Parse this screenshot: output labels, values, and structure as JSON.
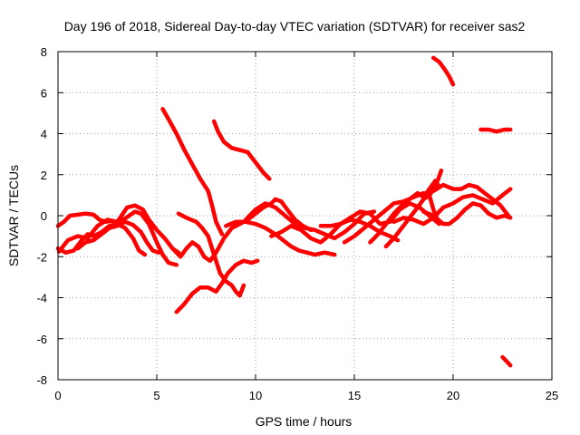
{
  "chart_data": {
    "type": "scatter",
    "title": "Day 196 of 2018, Sidereal Day-to-day VTEC variation (SDTVAR) for receiver sas2",
    "xlabel": "GPS time / hours",
    "ylabel": "SDTVAR / TECUs",
    "xlim": [
      0,
      25
    ],
    "ylim": [
      -8,
      8
    ],
    "xticks": [
      "0",
      "5",
      "10",
      "15",
      "20",
      "25"
    ],
    "yticks": [
      "-8",
      "-6",
      "-4",
      "-2",
      "0",
      "2",
      "4",
      "6",
      "8"
    ],
    "grid": true,
    "legend": "none",
    "color": "#ff0000",
    "series": [
      {
        "points": [
          [
            0,
            -0.5
          ],
          [
            0.3,
            -0.3
          ],
          [
            0.6,
            0.0
          ],
          [
            1.0,
            0.05
          ],
          [
            1.4,
            0.1
          ],
          [
            1.8,
            0.05
          ],
          [
            2.1,
            -0.2
          ],
          [
            2.4,
            -0.3
          ],
          [
            2.7,
            -0.25
          ],
          [
            3.0,
            -0.35
          ],
          [
            3.3,
            -0.2
          ],
          [
            3.6,
            0.0
          ],
          [
            3.9,
            0.2
          ],
          [
            4.2,
            0.1
          ],
          [
            4.6,
            -0.4
          ],
          [
            5.0,
            -1.3
          ],
          [
            5.3,
            -1.9
          ],
          [
            5.6,
            -2.3
          ],
          [
            6.0,
            -2.4
          ]
        ]
      },
      {
        "points": [
          [
            0,
            -1.6
          ],
          [
            0.4,
            -1.8
          ],
          [
            0.8,
            -1.7
          ],
          [
            1.2,
            -1.2
          ],
          [
            1.5,
            -0.9
          ],
          [
            1.8,
            -1.0
          ],
          [
            2.2,
            -0.8
          ],
          [
            2.6,
            -0.5
          ],
          [
            3.0,
            -0.4
          ],
          [
            3.4,
            -0.6
          ],
          [
            3.8,
            -1.1
          ],
          [
            4.1,
            -1.7
          ],
          [
            4.4,
            -1.9
          ]
        ]
      },
      {
        "points": [
          [
            0.05,
            -1.75
          ],
          [
            0.5,
            -1.2
          ],
          [
            1.0,
            -1.0
          ],
          [
            1.5,
            -1.1
          ],
          [
            2.0,
            -0.5
          ],
          [
            2.5,
            -0.2
          ],
          [
            3.0,
            -0.3
          ],
          [
            3.5,
            0.4
          ],
          [
            3.9,
            0.5
          ],
          [
            4.3,
            0.3
          ],
          [
            4.6,
            -0.2
          ],
          [
            5.0,
            -0.7
          ],
          [
            5.4,
            -1.1
          ],
          [
            5.8,
            -1.6
          ],
          [
            6.1,
            -1.8
          ]
        ]
      },
      {
        "points": [
          [
            1.0,
            -1.6
          ],
          [
            1.4,
            -1.3
          ],
          [
            1.8,
            -1.2
          ],
          [
            2.2,
            -0.9
          ],
          [
            2.6,
            -0.6
          ],
          [
            3.0,
            -0.5
          ],
          [
            3.4,
            -0.3
          ],
          [
            3.8,
            -0.45
          ],
          [
            4.2,
            -0.8
          ],
          [
            4.5,
            -1.3
          ],
          [
            4.8,
            -1.7
          ],
          [
            5.1,
            -1.8
          ]
        ]
      },
      {
        "points": [
          [
            5.3,
            5.2
          ],
          [
            5.6,
            4.7
          ],
          [
            6.0,
            4.0
          ],
          [
            6.4,
            3.2
          ],
          [
            6.8,
            2.5
          ],
          [
            7.2,
            1.8
          ],
          [
            7.6,
            1.2
          ],
          [
            7.8,
            0.5
          ],
          [
            8.0,
            -0.3
          ],
          [
            8.3,
            -0.9
          ]
        ]
      },
      {
        "points": [
          [
            7.9,
            4.6
          ],
          [
            8.1,
            4.1
          ],
          [
            8.4,
            3.6
          ],
          [
            8.8,
            3.3
          ],
          [
            9.2,
            3.2
          ],
          [
            9.6,
            3.1
          ],
          [
            10.0,
            2.6
          ],
          [
            10.4,
            2.1
          ],
          [
            10.7,
            1.8
          ]
        ]
      },
      {
        "points": [
          [
            6.1,
            0.1
          ],
          [
            6.5,
            -0.1
          ],
          [
            7.0,
            -0.3
          ],
          [
            7.3,
            -0.6
          ],
          [
            7.6,
            -1.0
          ],
          [
            7.8,
            -1.6
          ],
          [
            8.0,
            -2.2
          ],
          [
            8.2,
            -2.8
          ],
          [
            8.5,
            -3.2
          ],
          [
            8.8,
            -3.4
          ],
          [
            9.0,
            -3.7
          ],
          [
            9.2,
            -3.9
          ],
          [
            9.4,
            -3.4
          ]
        ]
      },
      {
        "points": [
          [
            5.8,
            -1.6
          ],
          [
            6.2,
            -2.0
          ],
          [
            6.5,
            -1.6
          ],
          [
            6.8,
            -1.3
          ],
          [
            7.1,
            -1.5
          ],
          [
            7.4,
            -2.0
          ],
          [
            7.7,
            -2.2
          ],
          [
            8.0,
            -1.8
          ],
          [
            8.4,
            -1.1
          ],
          [
            8.8,
            -0.6
          ],
          [
            9.2,
            -0.4
          ],
          [
            9.6,
            -0.2
          ],
          [
            10.0,
            0.1
          ],
          [
            10.4,
            0.4
          ],
          [
            10.8,
            0.6
          ],
          [
            11.0,
            0.8
          ],
          [
            11.3,
            0.7
          ],
          [
            11.6,
            0.3
          ],
          [
            12.0,
            -0.2
          ],
          [
            12.4,
            -0.5
          ],
          [
            12.8,
            -0.7
          ]
        ]
      },
      {
        "points": [
          [
            6.0,
            -4.7
          ],
          [
            6.4,
            -4.3
          ],
          [
            6.8,
            -3.8
          ],
          [
            7.2,
            -3.5
          ],
          [
            7.6,
            -3.5
          ],
          [
            8.0,
            -3.7
          ],
          [
            8.3,
            -3.3
          ],
          [
            8.6,
            -2.8
          ],
          [
            9.0,
            -2.4
          ],
          [
            9.4,
            -2.2
          ],
          [
            9.8,
            -2.3
          ],
          [
            10.1,
            -2.2
          ]
        ]
      },
      {
        "points": [
          [
            8.5,
            -0.5
          ],
          [
            9.0,
            -0.3
          ],
          [
            9.5,
            -0.3
          ],
          [
            10.0,
            -0.4
          ],
          [
            10.5,
            -0.6
          ],
          [
            11.0,
            -0.9
          ],
          [
            11.4,
            -1.2
          ],
          [
            11.8,
            -1.5
          ],
          [
            12.2,
            -1.7
          ],
          [
            12.6,
            -1.8
          ],
          [
            13.0,
            -1.9
          ],
          [
            13.5,
            -1.8
          ],
          [
            14.0,
            -1.9
          ]
        ]
      },
      {
        "points": [
          [
            9.5,
            -0.2
          ],
          [
            10.0,
            0.3
          ],
          [
            10.5,
            0.6
          ],
          [
            11.0,
            0.4
          ],
          [
            11.5,
            0.0
          ],
          [
            12.0,
            -0.4
          ],
          [
            12.5,
            -0.6
          ],
          [
            13.0,
            -0.7
          ],
          [
            13.5,
            -0.9
          ],
          [
            14.0,
            -1.1
          ],
          [
            14.5,
            -0.8
          ],
          [
            15.0,
            -0.4
          ],
          [
            15.5,
            0.1
          ],
          [
            16.0,
            0.2
          ]
        ]
      },
      {
        "points": [
          [
            10.8,
            -1.0
          ],
          [
            11.3,
            -0.8
          ],
          [
            11.8,
            -0.5
          ],
          [
            12.3,
            -0.7
          ],
          [
            12.8,
            -1.1
          ],
          [
            13.3,
            -1.3
          ],
          [
            13.8,
            -0.9
          ],
          [
            14.3,
            -0.4
          ],
          [
            14.8,
            -0.2
          ],
          [
            15.3,
            -0.3
          ],
          [
            15.8,
            -0.5
          ],
          [
            16.3,
            -0.8
          ],
          [
            16.8,
            -1.0
          ],
          [
            17.2,
            -1.2
          ]
        ]
      },
      {
        "points": [
          [
            13.3,
            -0.5
          ],
          [
            13.8,
            -0.5
          ],
          [
            14.3,
            -0.4
          ],
          [
            14.8,
            -0.1
          ],
          [
            15.3,
            0.2
          ],
          [
            15.8,
            0.1
          ],
          [
            16.3,
            -0.4
          ],
          [
            16.8,
            -0.3
          ],
          [
            17.3,
            0.3
          ],
          [
            17.8,
            0.6
          ],
          [
            18.3,
            0.4
          ],
          [
            18.8,
            0.0
          ],
          [
            19.3,
            -0.4
          ]
        ]
      },
      {
        "points": [
          [
            14.5,
            -1.3
          ],
          [
            15.0,
            -1.0
          ],
          [
            15.5,
            -0.6
          ],
          [
            16.0,
            -0.2
          ],
          [
            16.5,
            0.2
          ],
          [
            17.0,
            0.6
          ],
          [
            17.5,
            0.7
          ],
          [
            18.0,
            0.9
          ],
          [
            18.5,
            1.1
          ],
          [
            18.8,
            1.0
          ],
          [
            19.0,
            0.3
          ],
          [
            19.2,
            -0.2
          ]
        ]
      },
      {
        "points": [
          [
            15.8,
            -1.3
          ],
          [
            16.2,
            -0.9
          ],
          [
            16.6,
            -0.4
          ],
          [
            17.0,
            0.1
          ],
          [
            17.4,
            0.5
          ],
          [
            17.8,
            0.8
          ],
          [
            18.2,
            1.1
          ],
          [
            18.5,
            0.9
          ],
          [
            18.8,
            1.3
          ],
          [
            19.1,
            1.7
          ],
          [
            19.3,
            1.4
          ]
        ]
      },
      {
        "points": [
          [
            16.6,
            -1.5
          ],
          [
            17.0,
            -1.1
          ],
          [
            17.4,
            -0.6
          ],
          [
            17.8,
            -0.1
          ],
          [
            18.2,
            0.4
          ],
          [
            18.5,
            0.8
          ],
          [
            18.8,
            1.0
          ],
          [
            19.1,
            1.4
          ],
          [
            19.4,
            2.2
          ]
        ]
      },
      {
        "points": [
          [
            17.0,
            -0.3
          ],
          [
            17.5,
            -0.1
          ],
          [
            18.0,
            -0.2
          ],
          [
            18.5,
            -0.4
          ],
          [
            19.0,
            -0.1
          ],
          [
            19.5,
            0.4
          ],
          [
            20.0,
            0.6
          ],
          [
            20.5,
            0.9
          ],
          [
            21.0,
            1.0
          ],
          [
            21.5,
            0.8
          ],
          [
            22.0,
            0.6
          ],
          [
            22.5,
            1.0
          ],
          [
            22.9,
            1.3
          ]
        ]
      },
      {
        "points": [
          [
            19.0,
            1.2
          ],
          [
            19.5,
            1.5
          ],
          [
            20.0,
            1.3
          ],
          [
            20.4,
            1.3
          ],
          [
            20.8,
            1.5
          ],
          [
            21.2,
            1.4
          ],
          [
            21.6,
            1.1
          ],
          [
            22.0,
            0.8
          ],
          [
            22.4,
            0.5
          ],
          [
            22.8,
            0.0
          ]
        ]
      },
      {
        "points": [
          [
            18.5,
            0.2
          ],
          [
            19.0,
            0.0
          ],
          [
            19.5,
            -0.4
          ],
          [
            19.8,
            -0.4
          ],
          [
            20.2,
            -0.1
          ],
          [
            20.6,
            0.3
          ],
          [
            21.0,
            0.6
          ],
          [
            21.4,
            0.5
          ],
          [
            21.8,
            0.1
          ],
          [
            22.2,
            -0.1
          ],
          [
            22.6,
            0.0
          ],
          [
            22.9,
            -0.1
          ]
        ]
      },
      {
        "points": [
          [
            19.0,
            7.7
          ],
          [
            19.3,
            7.5
          ],
          [
            19.6,
            7.1
          ],
          [
            19.8,
            6.8
          ],
          [
            19.9,
            6.6
          ],
          [
            20.0,
            6.4
          ]
        ]
      },
      {
        "points": [
          [
            21.4,
            4.2
          ],
          [
            21.8,
            4.2
          ],
          [
            22.2,
            4.1
          ],
          [
            22.6,
            4.2
          ],
          [
            22.9,
            4.2
          ]
        ]
      },
      {
        "points": [
          [
            22.5,
            -6.9
          ],
          [
            22.7,
            -7.1
          ],
          [
            22.9,
            -7.3
          ]
        ]
      }
    ]
  }
}
